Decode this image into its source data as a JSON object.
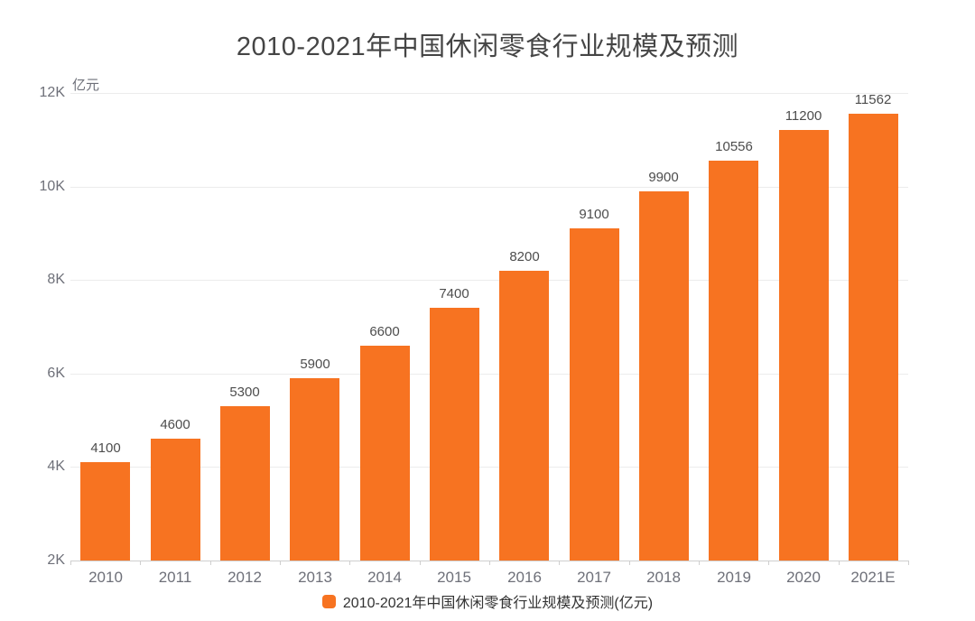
{
  "title": "2010-2021年中国休闲零食行业规模及预测",
  "unit_label": "亿元",
  "legend": {
    "label": "2010-2021年中国休闲零食行业规模及预测(亿元)",
    "marker_color": "#f77321"
  },
  "chart_data": {
    "type": "bar",
    "title": "2010-2021年中国休闲零食行业规模及预测",
    "ylabel": "亿元",
    "categories": [
      "2010",
      "2011",
      "2012",
      "2013",
      "2014",
      "2015",
      "2016",
      "2017",
      "2018",
      "2019",
      "2020",
      "2021E"
    ],
    "values": [
      4100,
      4600,
      5300,
      5900,
      6600,
      7400,
      8200,
      9100,
      9900,
      10556,
      11200,
      11562
    ],
    "ylim": [
      2000,
      12000
    ],
    "yticks": [
      2000,
      4000,
      6000,
      8000,
      10000,
      12000
    ],
    "ytick_labels": [
      "2K",
      "4K",
      "6K",
      "8K",
      "10K",
      "12K"
    ],
    "bar_color": "#f77321",
    "grid": true,
    "legend_position": "bottom",
    "legend_label": "2010-2021年中国休闲零食行业规模及预测(亿元)"
  }
}
